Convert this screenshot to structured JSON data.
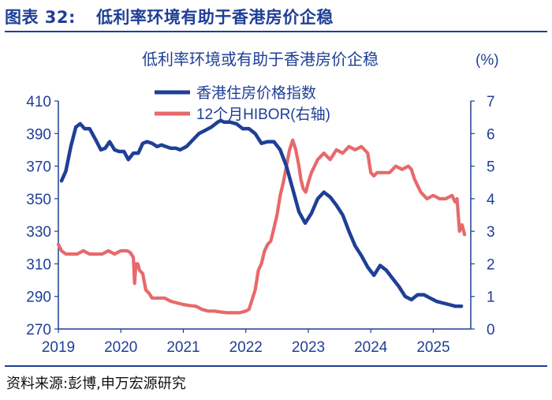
{
  "header": {
    "label": "图表 32:",
    "title": "低利率环境有助于香港房价企稳"
  },
  "footer": {
    "source": "资料来源:彭博,申万宏源研究"
  },
  "chart_data": {
    "type": "line",
    "title": "低利率环境或有助于香港房价企稳",
    "y2_unit": "(%)",
    "x_ticks": [
      "2019",
      "2020",
      "2021",
      "2022",
      "2023",
      "2024",
      "2025"
    ],
    "x_range": [
      2019.0,
      2025.6
    ],
    "y_left": {
      "ylim": [
        270,
        410
      ],
      "ticks": [
        "410",
        "390",
        "370",
        "350",
        "330",
        "310",
        "290",
        "270"
      ]
    },
    "y_right": {
      "ylim": [
        0,
        7
      ],
      "ticks": [
        "7",
        "6",
        "5",
        "4",
        "3",
        "2",
        "1",
        "0"
      ]
    },
    "legend_position": "top-center",
    "grid": false,
    "colors": {
      "property": "#1f3f96",
      "hibor": "#e8696b",
      "text": "#1f3f96",
      "axis": "#1f3f96"
    },
    "series": [
      {
        "name": "香港住房价格指数",
        "axis": "left",
        "x": [
          2019.05,
          2019.12,
          2019.2,
          2019.28,
          2019.35,
          2019.42,
          2019.5,
          2019.6,
          2019.68,
          2019.75,
          2019.82,
          2019.9,
          2019.97,
          2020.05,
          2020.12,
          2020.2,
          2020.28,
          2020.35,
          2020.42,
          2020.5,
          2020.58,
          2020.65,
          2020.72,
          2020.8,
          2020.88,
          2020.95,
          2021.05,
          2021.15,
          2021.25,
          2021.35,
          2021.45,
          2021.55,
          2021.6,
          2021.65,
          2021.75,
          2021.85,
          2021.95,
          2022.05,
          2022.15,
          2022.25,
          2022.35,
          2022.45,
          2022.55,
          2022.65,
          2022.75,
          2022.85,
          2022.95,
          2023.05,
          2023.15,
          2023.25,
          2023.35,
          2023.45,
          2023.55,
          2023.65,
          2023.75,
          2023.85,
          2023.95,
          2024.05,
          2024.15,
          2024.25,
          2024.35,
          2024.45,
          2024.55,
          2024.65,
          2024.75,
          2024.85,
          2024.95,
          2025.05,
          2025.15,
          2025.25,
          2025.35,
          2025.45
        ],
        "values": [
          361,
          367,
          382,
          394,
          396,
          393,
          393,
          386,
          380,
          381,
          385,
          380,
          379,
          379,
          374,
          378,
          378,
          384,
          385,
          384,
          382,
          383,
          382,
          381,
          381,
          380,
          382,
          386,
          390,
          392,
          394,
          397,
          398,
          397,
          397,
          396,
          393,
          393,
          390,
          384,
          385,
          385,
          380,
          370,
          356,
          342,
          335,
          341,
          350,
          354,
          351,
          346,
          340,
          330,
          321,
          315,
          308,
          303,
          309,
          306,
          301,
          296,
          290,
          288,
          291,
          291,
          289,
          287,
          286,
          285,
          284,
          284
        ]
      },
      {
        "name": "12个月HIBOR(右轴)",
        "axis": "right",
        "x": [
          2019.0,
          2019.05,
          2019.12,
          2019.2,
          2019.3,
          2019.4,
          2019.5,
          2019.6,
          2019.7,
          2019.8,
          2019.9,
          2020.0,
          2020.1,
          2020.15,
          2020.2,
          2020.22,
          2020.24,
          2020.27,
          2020.3,
          2020.35,
          2020.4,
          2020.45,
          2020.5,
          2020.6,
          2020.7,
          2020.8,
          2020.9,
          2021.0,
          2021.1,
          2021.2,
          2021.3,
          2021.4,
          2021.5,
          2021.6,
          2021.7,
          2021.8,
          2021.9,
          2022.0,
          2022.05,
          2022.1,
          2022.15,
          2022.2,
          2022.25,
          2022.3,
          2022.35,
          2022.4,
          2022.45,
          2022.5,
          2022.55,
          2022.6,
          2022.65,
          2022.7,
          2022.75,
          2022.8,
          2022.85,
          2022.88,
          2022.92,
          2022.96,
          2023.0,
          2023.05,
          2023.1,
          2023.15,
          2023.2,
          2023.25,
          2023.3,
          2023.35,
          2023.45,
          2023.55,
          2023.65,
          2023.75,
          2023.85,
          2023.95,
          2024.0,
          2024.05,
          2024.1,
          2024.2,
          2024.3,
          2024.4,
          2024.5,
          2024.6,
          2024.65,
          2024.7,
          2024.75,
          2024.8,
          2024.9,
          2025.0,
          2025.1,
          2025.2,
          2025.3,
          2025.35,
          2025.38,
          2025.42,
          2025.46,
          2025.5
        ],
        "values": [
          2.6,
          2.4,
          2.3,
          2.3,
          2.3,
          2.4,
          2.3,
          2.3,
          2.3,
          2.4,
          2.3,
          2.4,
          2.4,
          2.35,
          2.2,
          1.4,
          2.0,
          2.0,
          1.8,
          1.7,
          1.2,
          1.1,
          0.95,
          0.95,
          0.95,
          0.85,
          0.8,
          0.75,
          0.72,
          0.7,
          0.6,
          0.55,
          0.55,
          0.52,
          0.5,
          0.5,
          0.5,
          0.55,
          0.6,
          0.9,
          1.2,
          1.8,
          2.0,
          2.4,
          2.6,
          2.7,
          3.1,
          3.5,
          4.1,
          4.5,
          5.0,
          5.5,
          5.8,
          5.5,
          5.0,
          4.6,
          4.3,
          4.2,
          4.5,
          4.8,
          5.0,
          5.2,
          5.3,
          5.4,
          5.3,
          5.2,
          5.5,
          5.4,
          5.6,
          5.5,
          5.6,
          5.4,
          4.8,
          4.7,
          4.8,
          4.8,
          4.8,
          5.0,
          4.9,
          5.0,
          4.9,
          4.6,
          4.4,
          4.2,
          4.0,
          4.1,
          4.0,
          4.0,
          4.1,
          3.9,
          4.0,
          3.0,
          3.2,
          2.9
        ]
      }
    ]
  }
}
